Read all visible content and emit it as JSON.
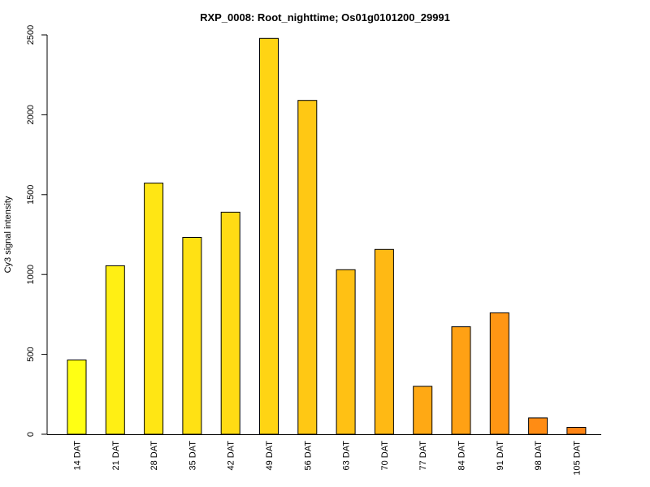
{
  "chart_data": {
    "type": "bar",
    "title": "RXP_0008: Root_nighttime; Os01g0101200_29991",
    "xlabel": "",
    "ylabel": "Cy3 signal intensity",
    "ylim": [
      0,
      2500
    ],
    "yticks": [
      0,
      500,
      1000,
      1500,
      2000,
      2500
    ],
    "grid": false,
    "legend": "none",
    "categories": [
      "14 DAT",
      "21 DAT",
      "28 DAT",
      "35 DAT",
      "42 DAT",
      "49 DAT",
      "56 DAT",
      "63 DAT",
      "70 DAT",
      "77 DAT",
      "84 DAT",
      "91 DAT",
      "98 DAT",
      "105 DAT"
    ],
    "values": [
      465,
      1055,
      1572,
      1232,
      1390,
      2478,
      2090,
      1030,
      1157,
      300,
      673,
      760,
      102,
      43
    ],
    "colors": [
      "#FFFF14",
      "#FFEF14",
      "#FFE614",
      "#FFE114",
      "#FFDB14",
      "#FFD414",
      "#FFC814",
      "#FFC114",
      "#FFB914",
      "#FFA914",
      "#FFA114",
      "#FF9614",
      "#FF8C14",
      "#FF8414"
    ]
  }
}
